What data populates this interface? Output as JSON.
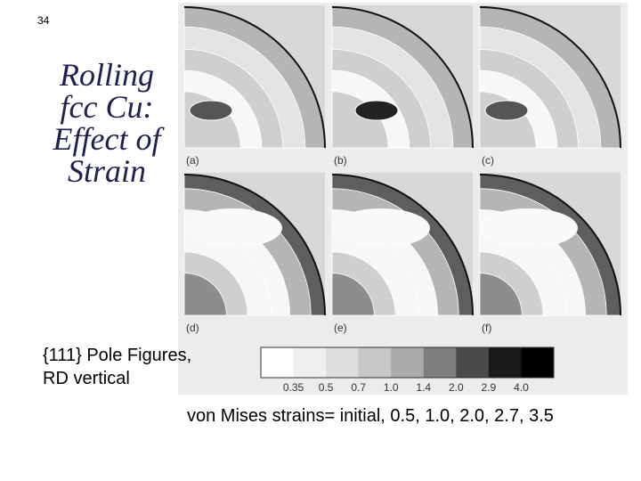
{
  "slide_number": "34",
  "title": {
    "lines": [
      "Rolling",
      "fcc Cu:",
      "Effect of",
      "Strain"
    ]
  },
  "caption": {
    "lines": [
      "{111} Pole Figures,",
      "RD vertical"
    ]
  },
  "panels": [
    {
      "label": "(a)"
    },
    {
      "label": "(b)"
    },
    {
      "label": "(c)"
    },
    {
      "label": "(d)"
    },
    {
      "label": "(e)"
    },
    {
      "label": "(f)"
    }
  ],
  "color_scale": {
    "labels": [
      "0.35",
      "0.5",
      "0.7",
      "1.0",
      "1.4",
      "2.0",
      "2.9",
      "4.0"
    ]
  },
  "footer": "von Mises strains= initial, 0.5, 1.0, 2.0, 2.7, 3.5"
}
